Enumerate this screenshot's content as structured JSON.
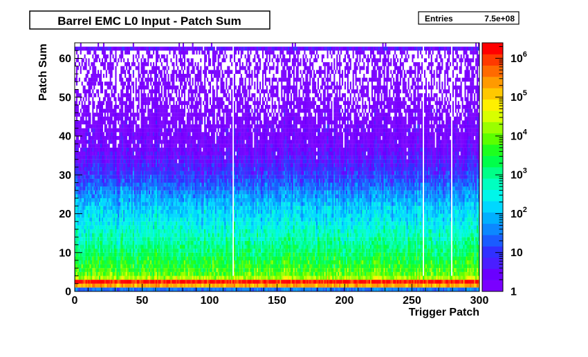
{
  "chart_data": {
    "type": "heatmap",
    "title": "Barrel EMC L0 Input - Patch Sum",
    "xlabel": "Trigger Patch",
    "ylabel": "Patch Sum",
    "xlim": [
      0,
      300
    ],
    "ylim": [
      0,
      64
    ],
    "x_ticks": [
      0,
      50,
      100,
      150,
      200,
      250,
      300
    ],
    "y_ticks": [
      0,
      10,
      20,
      30,
      40,
      50,
      60
    ],
    "z_scale": "log",
    "zlim": [
      1,
      2500000
    ],
    "z_ticks": [
      {
        "value": 1,
        "label": "1"
      },
      {
        "value": 10,
        "label": "10"
      },
      {
        "value": 100,
        "label": "10",
        "exp": "2"
      },
      {
        "value": 1000,
        "label": "10",
        "exp": "3"
      },
      {
        "value": 10000,
        "label": "10",
        "exp": "4"
      },
      {
        "value": 100000,
        "label": "10",
        "exp": "5"
      },
      {
        "value": 1000000,
        "label": "10",
        "exp": "6"
      }
    ],
    "stats": {
      "label": "Entries",
      "value": "7.5e+08"
    },
    "palette": [
      "#7a00ff",
      "#6a00ff",
      "#4a1eff",
      "#3030ff",
      "#1a5cff",
      "#0c88ff",
      "#00b0ff",
      "#00d8ff",
      "#00f6ea",
      "#00ffc0",
      "#00ff88",
      "#00ff4a",
      "#1eff1e",
      "#5cff00",
      "#9aff00",
      "#d8ff00",
      "#fff000",
      "#ffc800",
      "#ff9a00",
      "#ff6a00",
      "#ff3a00",
      "#ff0000"
    ],
    "profile": [
      {
        "y": 0,
        "z": 30
      },
      {
        "y": 1,
        "z": 200000
      },
      {
        "y": 2,
        "z": 1600000
      },
      {
        "y": 3,
        "z": 20000
      },
      {
        "y": 4,
        "z": 8000
      },
      {
        "y": 6,
        "z": 4000
      },
      {
        "y": 8,
        "z": 2500
      },
      {
        "y": 10,
        "z": 1500
      },
      {
        "y": 12,
        "z": 900
      },
      {
        "y": 15,
        "z": 450
      },
      {
        "y": 18,
        "z": 220
      },
      {
        "y": 20,
        "z": 150
      },
      {
        "y": 22,
        "z": 100
      },
      {
        "y": 25,
        "z": 40
      },
      {
        "y": 28,
        "z": 15
      },
      {
        "y": 30,
        "z": 8
      },
      {
        "y": 33,
        "z": 4
      },
      {
        "y": 36,
        "z": 2.2
      },
      {
        "y": 40,
        "z": 1.4
      },
      {
        "y": 45,
        "z": 0.9
      },
      {
        "y": 50,
        "z": 0.6
      },
      {
        "y": 55,
        "z": 0.5
      },
      {
        "y": 60,
        "z": 0.4
      },
      {
        "y": 61,
        "z": 0.4
      },
      {
        "y": 62,
        "z": 3
      },
      {
        "y": 63,
        "z": 0.05
      }
    ],
    "empty_columns": [
      117,
      258,
      279
    ]
  }
}
